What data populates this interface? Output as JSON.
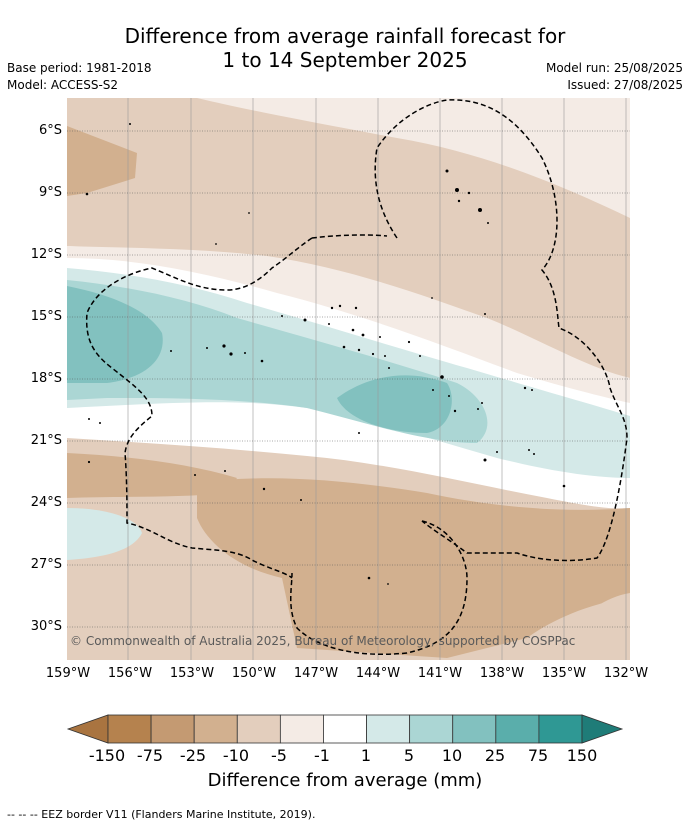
{
  "title_line1": "Difference from average rainfall forecast for",
  "title_line2": "1 to 14 September 2025",
  "meta": {
    "base_period": "Base period: 1981-2018",
    "model": "Model: ACCESS-S2",
    "model_run": "Model run: 25/08/2025",
    "issued": "Issued: 27/08/2025"
  },
  "copyright": "© Commonwealth of Australia 2025, Bureau of Meteorology, supported by COSPPac",
  "map": {
    "lat_labels": [
      "6°S",
      "9°S",
      "12°S",
      "15°S",
      "18°S",
      "21°S",
      "24°S",
      "27°S",
      "30°S"
    ],
    "lon_labels": [
      "159°W",
      "156°W",
      "153°W",
      "150°W",
      "147°W",
      "144°W",
      "141°W",
      "138°W",
      "135°W",
      "132°W"
    ],
    "border_style": "dashed"
  },
  "colorbar": {
    "ticks": [
      "-150",
      "-75",
      "-25",
      "-10",
      "-5",
      "-1",
      "1",
      "5",
      "10",
      "25",
      "75",
      "150"
    ],
    "colors": [
      "#a97440",
      "#b5824e",
      "#c49a72",
      "#d2b08f",
      "#e3cebd",
      "#f4ebe5",
      "#ffffff",
      "#d4e9e8",
      "#abd6d4",
      "#82c1bf",
      "#5aaeab",
      "#2f9894",
      "#1f7c78"
    ],
    "title": "Difference from average (mm)"
  },
  "footer": "--  --  -- EEZ border V11 (Flanders Marine Institute, 2019)."
}
